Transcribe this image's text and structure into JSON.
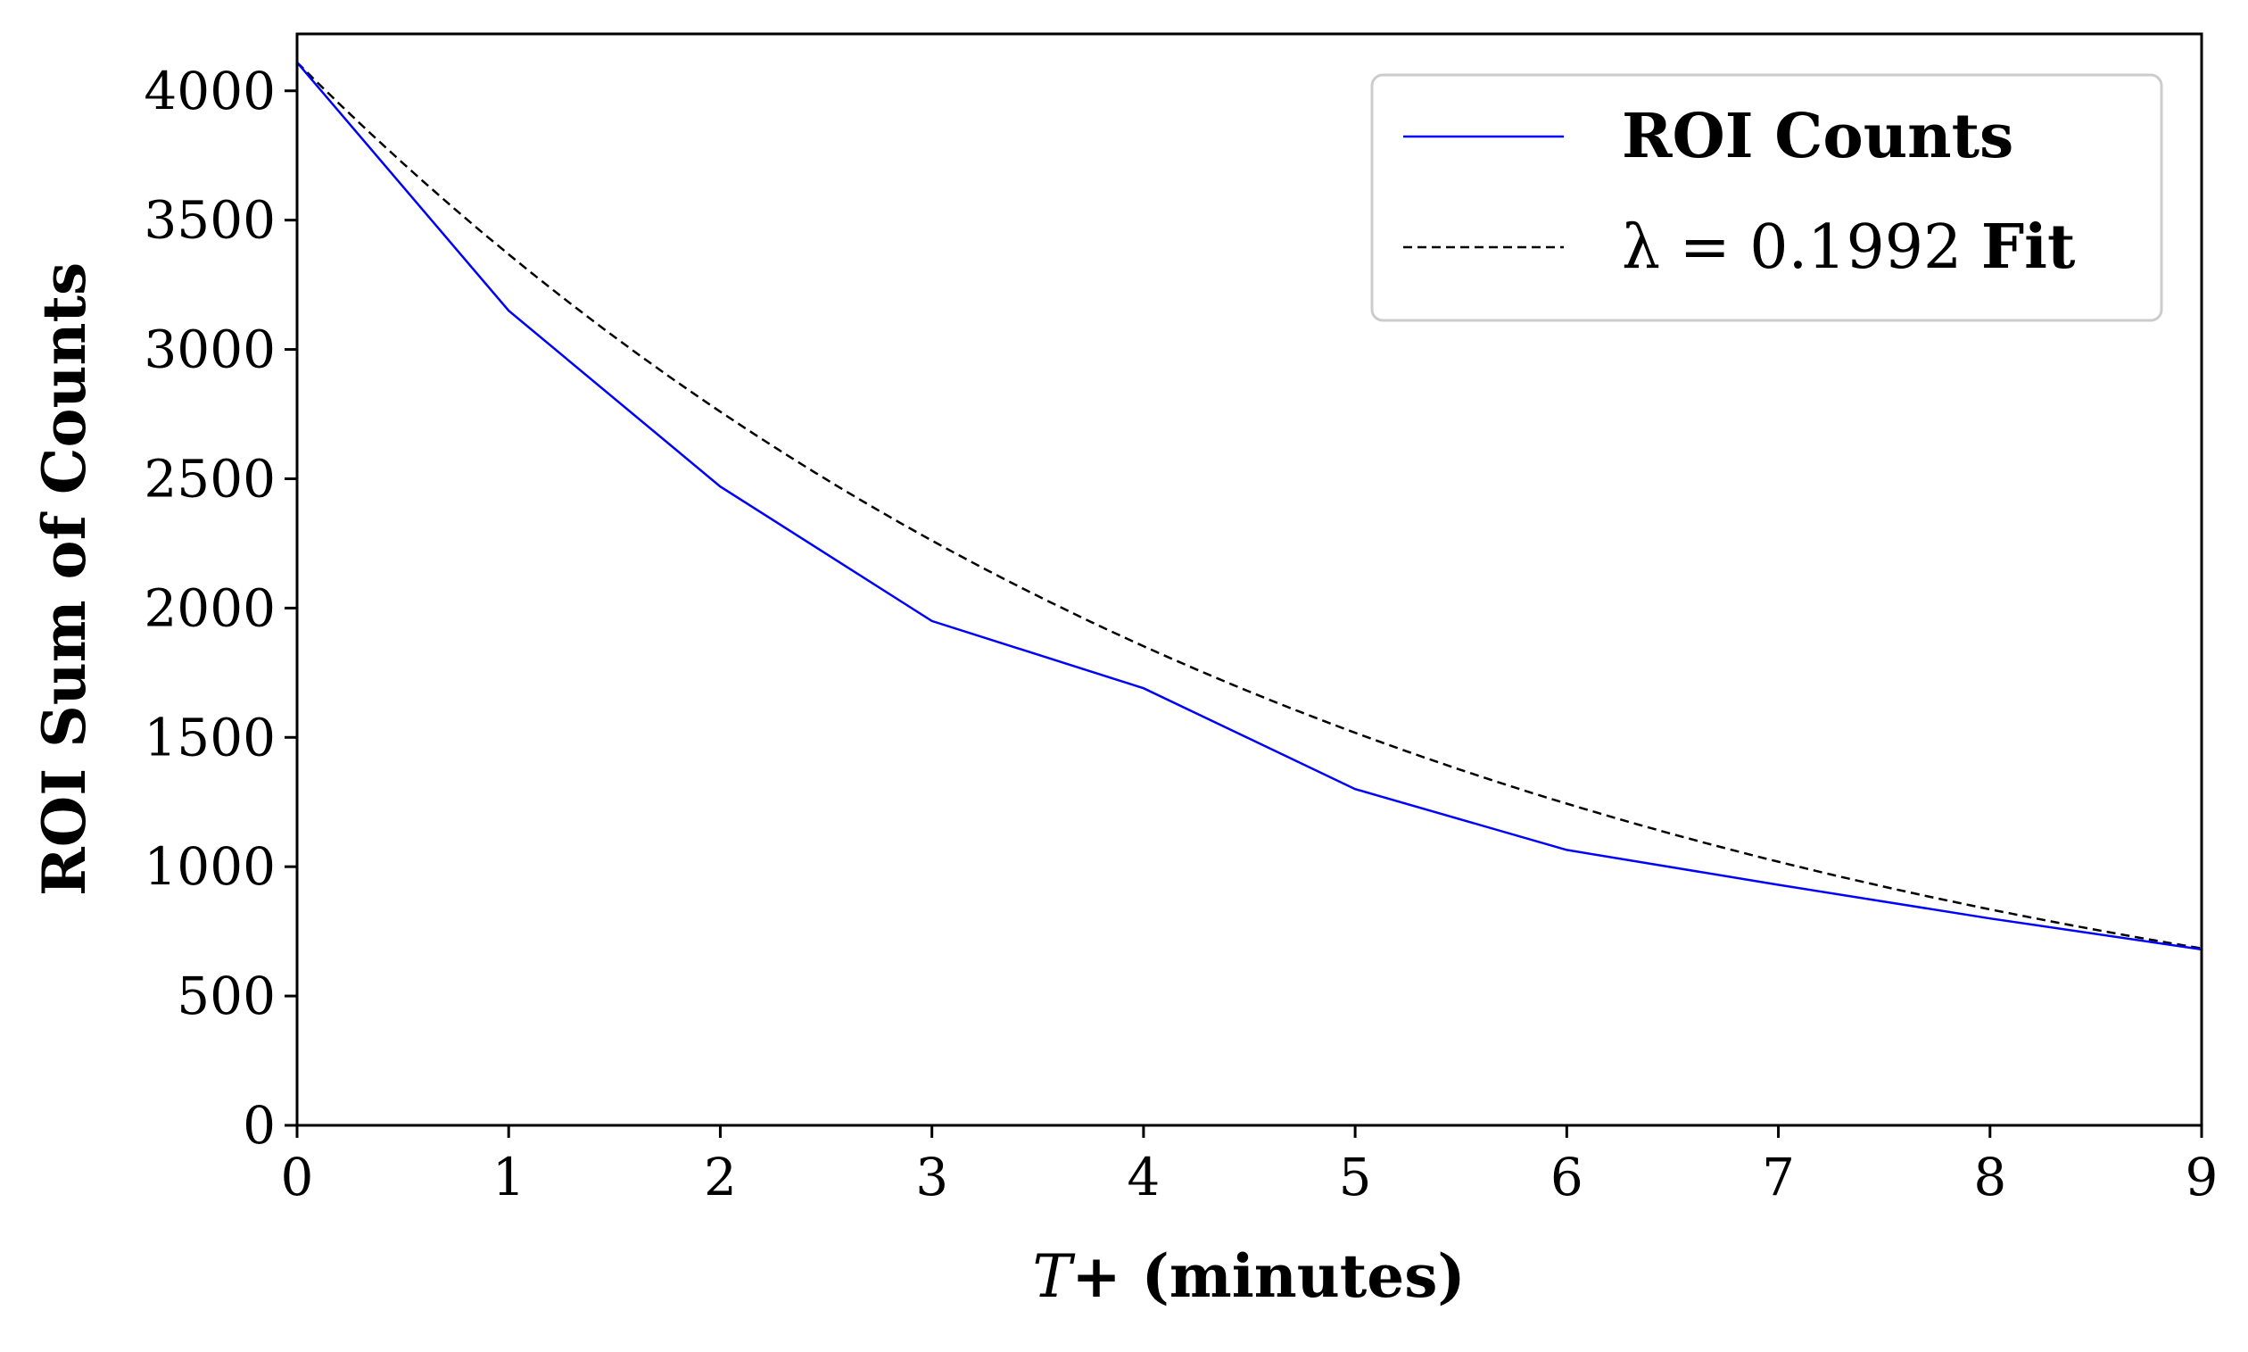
{
  "chart_data": {
    "type": "line",
    "x": [
      0,
      1,
      2,
      3,
      4,
      5,
      6,
      7,
      8,
      9
    ],
    "series": [
      {
        "name": "ROI Counts",
        "values": [
          4110,
          3150,
          2470,
          1950,
          1690,
          1300,
          1065,
          930,
          800,
          680
        ],
        "color": "#0000ff",
        "style": "solid"
      },
      {
        "name": "λ = 0.1992 Fit",
        "name_prefix": "λ = 0.1992 ",
        "name_bold": "Fit",
        "function": "exponential",
        "a": 4110,
        "lambda": 0.1992,
        "color": "#000000",
        "style": "dashed"
      }
    ],
    "xlabel": "T+ (minutes)",
    "xlabel_italic": "T",
    "xlabel_rest": "+ (minutes)",
    "ylabel": "ROI Sum of Counts",
    "xlim": [
      0,
      9
    ],
    "ylim": [
      0,
      4220
    ],
    "x_ticks": [
      "0",
      "1",
      "2",
      "3",
      "4",
      "5",
      "6",
      "7",
      "8",
      "9"
    ],
    "y_ticks": [
      "0",
      "500",
      "1000",
      "1500",
      "2000",
      "2500",
      "3000",
      "3500",
      "4000"
    ],
    "grid": false,
    "legend": "top-right"
  }
}
